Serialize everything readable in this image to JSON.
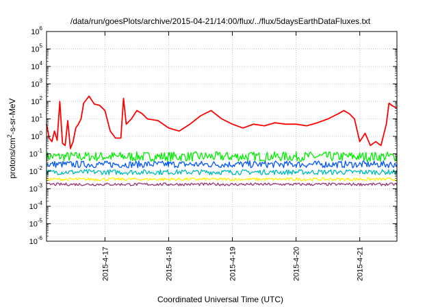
{
  "chart_data": {
    "type": "line",
    "title": "/data/run/goesPlots/archive/2015-04-21/14:00/flux/../flux/5daysEarthDataFluxes.txt",
    "xlabel": "Coordinated Universal Time (UTC)",
    "ylabel_parts": {
      "before": "protons/cm",
      "sup": "2",
      "after": "-s-sr-MeV"
    },
    "x_axis": {
      "type": "date",
      "range": [
        "2015-04-16T02:00",
        "2015-04-21T14:00"
      ],
      "ticks": [
        "2015-4-17",
        "2015-4-18",
        "2015-4-19",
        "2015-4-20",
        "2015-4-21"
      ],
      "tick_dates": [
        "2015-04-17",
        "2015-04-18",
        "2015-04-19",
        "2015-04-20",
        "2015-04-21"
      ]
    },
    "y_axis": {
      "scale": "log",
      "ylim": [
        1e-06,
        1000000.0
      ],
      "tick_exponents": [
        -6,
        -5,
        -4,
        -3,
        -2,
        -1,
        0,
        1,
        2,
        3,
        4,
        5,
        6
      ]
    },
    "grid": true,
    "legend": "none",
    "series": [
      {
        "color": "#ff0000",
        "x": [
          "2015-04-16T02:00",
          "2015-04-16T03:00",
          "2015-04-16T04:00",
          "2015-04-16T05:00",
          "2015-04-16T06:00",
          "2015-04-16T07:00",
          "2015-04-16T08:00",
          "2015-04-16T09:00",
          "2015-04-16T10:00",
          "2015-04-16T11:00",
          "2015-04-16T12:00",
          "2015-04-16T13:00",
          "2015-04-16T14:00",
          "2015-04-16T15:00",
          "2015-04-16T16:00",
          "2015-04-16T18:00",
          "2015-04-16T20:00",
          "2015-04-16T22:00",
          "2015-04-17T00:00",
          "2015-04-17T02:00",
          "2015-04-17T04:00",
          "2015-04-17T06:00",
          "2015-04-17T07:00",
          "2015-04-17T08:00",
          "2015-04-17T10:00",
          "2015-04-17T12:00",
          "2015-04-17T14:00",
          "2015-04-17T16:00",
          "2015-04-17T20:00",
          "2015-04-18T00:00",
          "2015-04-18T04:00",
          "2015-04-18T08:00",
          "2015-04-18T12:00",
          "2015-04-18T16:00",
          "2015-04-18T20:00",
          "2015-04-19T00:00",
          "2015-04-19T04:00",
          "2015-04-19T08:00",
          "2015-04-19T12:00",
          "2015-04-19T16:00",
          "2015-04-19T20:00",
          "2015-04-20T00:00",
          "2015-04-20T04:00",
          "2015-04-20T08:00",
          "2015-04-20T12:00",
          "2015-04-20T16:00",
          "2015-04-20T18:00",
          "2015-04-20T20:00",
          "2015-04-20T22:00",
          "2015-04-21T00:00",
          "2015-04-21T02:00",
          "2015-04-21T04:00",
          "2015-04-21T06:00",
          "2015-04-21T08:00",
          "2015-04-21T10:00",
          "2015-04-21T11:00",
          "2015-04-21T12:00",
          "2015-04-21T14:00"
        ],
        "values": [
          5,
          0.8,
          0.5,
          2,
          0.6,
          100,
          0.4,
          0.3,
          8,
          0.2,
          0.5,
          3,
          5,
          10,
          80,
          200,
          70,
          60,
          30,
          2,
          0.8,
          0.8,
          150,
          5,
          10,
          30,
          20,
          10,
          8,
          3,
          2,
          5,
          15,
          30,
          10,
          5,
          3,
          5,
          4,
          6,
          5,
          5,
          4,
          6,
          10,
          20,
          30,
          20,
          10,
          0.5,
          1.5,
          0.3,
          0.5,
          0.3,
          5,
          80,
          60,
          40
        ]
      },
      {
        "color": "#00ee00",
        "x": [
          "2015-04-16T02:00",
          "2015-04-17T00:00",
          "2015-04-18T00:00",
          "2015-04-19T00:00",
          "2015-04-20T00:00",
          "2015-04-21T00:00",
          "2015-04-21T14:00"
        ],
        "values": [
          0.07,
          0.07,
          0.07,
          0.07,
          0.07,
          0.07,
          0.07
        ]
      },
      {
        "color": "#0055ff",
        "x": [
          "2015-04-16T02:00",
          "2015-04-17T00:00",
          "2015-04-18T00:00",
          "2015-04-19T00:00",
          "2015-04-20T00:00",
          "2015-04-21T00:00",
          "2015-04-21T14:00"
        ],
        "values": [
          0.025,
          0.025,
          0.025,
          0.025,
          0.025,
          0.025,
          0.025
        ]
      },
      {
        "color": "#00bbbb",
        "x": [
          "2015-04-16T02:00",
          "2015-04-17T00:00",
          "2015-04-18T00:00",
          "2015-04-19T00:00",
          "2015-04-20T00:00",
          "2015-04-21T00:00",
          "2015-04-21T14:00"
        ],
        "values": [
          0.009,
          0.009,
          0.009,
          0.009,
          0.009,
          0.009,
          0.009
        ]
      },
      {
        "color": "#ffee00",
        "x": [
          "2015-04-16T02:00",
          "2015-04-17T00:00",
          "2015-04-18T00:00",
          "2015-04-19T00:00",
          "2015-04-20T00:00",
          "2015-04-21T00:00",
          "2015-04-21T14:00"
        ],
        "values": [
          0.0035,
          0.0035,
          0.0035,
          0.0035,
          0.0035,
          0.0035,
          0.0035
        ]
      },
      {
        "color": "#993377",
        "x": [
          "2015-04-16T02:00",
          "2015-04-17T00:00",
          "2015-04-18T00:00",
          "2015-04-19T00:00",
          "2015-04-20T00:00",
          "2015-04-21T00:00",
          "2015-04-21T14:00"
        ],
        "values": [
          0.0018,
          0.0018,
          0.0018,
          0.0018,
          0.0018,
          0.0018,
          0.0018
        ]
      }
    ]
  }
}
